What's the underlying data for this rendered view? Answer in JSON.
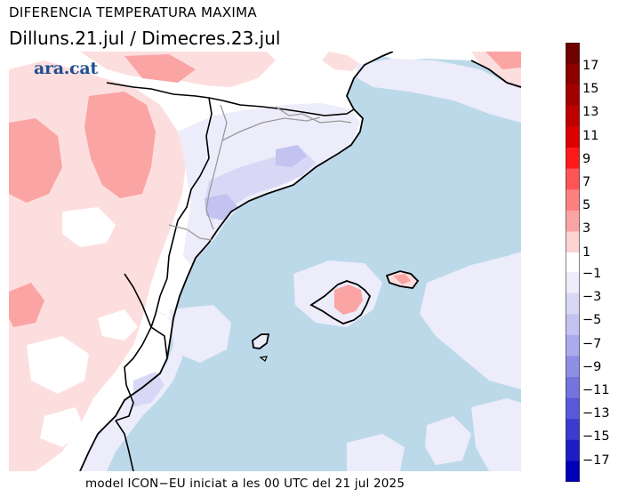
{
  "header": {
    "title": "DIFERENCIA TEMPERATURA MAXIMA",
    "subtitle": "Dilluns.21.jul / Dimecres.23.jul"
  },
  "logo": {
    "text": "ara.cat"
  },
  "footer": {
    "text": "model ICON−EU iniciat a les 00 UTC del 21 jul 2025"
  },
  "legend": {
    "ticks": [
      "17",
      "15",
      "13",
      "11",
      "9",
      "7",
      "5",
      "3",
      "1",
      "−1",
      "−3",
      "−5",
      "−7",
      "−9",
      "−11",
      "−13",
      "−15",
      "−17"
    ],
    "colors_warm": [
      "#6e0000",
      "#8c0000",
      "#a50000",
      "#c00000",
      "#dd0000",
      "#ff1a1a",
      "#ff5555",
      "#ff8080",
      "#fba4a4",
      "#fdd3d3"
    ],
    "colors_cool": [
      "#ededfb",
      "#d8d8f6",
      "#c3c3f1",
      "#aaaaec",
      "#8f8fe6",
      "#7474df",
      "#5858d8",
      "#3b3bd0",
      "#1d1dc6",
      "#0000b8"
    ],
    "neutral_color": "#ffffff"
  },
  "map_colors": {
    "sea": "#bcd9ea",
    "land_neutral": "#ffffff",
    "warm_light": "#fddede",
    "warm_mid": "#fba4a4",
    "cool_light": "#ececfb",
    "cool_mid": "#d8d8f6",
    "cool_deep": "#c3c3f1"
  }
}
